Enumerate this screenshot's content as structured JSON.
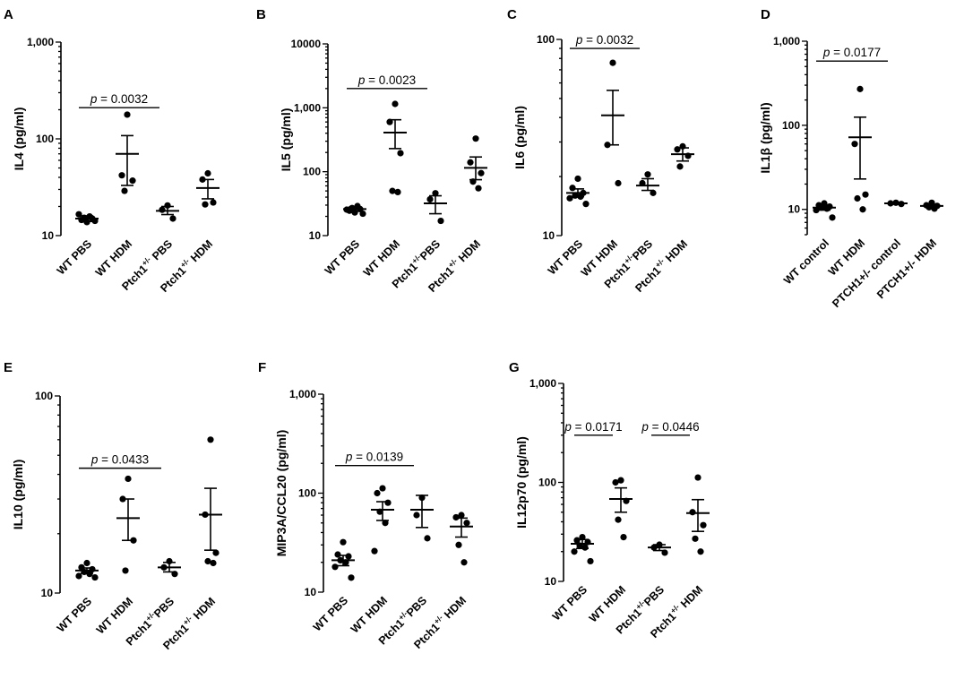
{
  "chart_data": [
    {
      "type": "scatter",
      "panel": "A",
      "scale": "log",
      "ylim": [
        10,
        1000
      ],
      "ylabel": "IL4 (pg/ml)",
      "yticks": [
        {
          "v": 10,
          "t": "10"
        },
        {
          "v": 100,
          "t": "100"
        },
        {
          "v": 1000,
          "t": "1,000"
        }
      ],
      "groups": [
        {
          "label": "WT PBS",
          "sup": "",
          "after": "",
          "mean": 15,
          "sem": [
            14,
            16
          ],
          "points": [
            13.8,
            14.5,
            15.0,
            15.3,
            15.8,
            16.6,
            14.2
          ]
        },
        {
          "label": "WT HDM",
          "sup": "",
          "after": "",
          "mean": 70,
          "sem": [
            33,
            108
          ],
          "points": [
            178,
            42,
            37,
            29
          ]
        },
        {
          "label": "Ptch1",
          "sup": "+/-",
          "after": " PBS",
          "mean": 18,
          "sem": [
            16.5,
            20
          ],
          "points": [
            20.5,
            18.5,
            15
          ]
        },
        {
          "label": "Ptch1",
          "sup": "+/-",
          "after": " HDM",
          "mean": 31,
          "sem": [
            24,
            38
          ],
          "points": [
            44,
            38,
            22,
            21
          ]
        }
      ],
      "pvalues": [
        {
          "from": 0,
          "to": 2,
          "y": 210,
          "text": "= 0.0032"
        }
      ]
    },
    {
      "type": "scatter",
      "panel": "B",
      "scale": "log",
      "ylim": [
        10,
        10000
      ],
      "ylabel": "IL5 (pg/ml)",
      "yticks": [
        {
          "v": 10,
          "t": "10"
        },
        {
          "v": 100,
          "t": "100"
        },
        {
          "v": 1000,
          "t": "1,000"
        },
        {
          "v": 10000,
          "t": "10000"
        }
      ],
      "groups": [
        {
          "label": "WT PBS",
          "sup": "",
          "after": "",
          "mean": 26,
          "sem": [
            24,
            28
          ],
          "points": [
            23,
            24.5,
            26,
            27,
            29,
            25.5,
            22
          ]
        },
        {
          "label": "WT HDM",
          "sup": "",
          "after": "",
          "mean": 410,
          "sem": [
            230,
            650
          ],
          "points": [
            1150,
            600,
            195,
            50,
            48
          ]
        },
        {
          "label": "Ptch1",
          "sup": "+/-",
          "after": "PBS",
          "mean": 32,
          "sem": [
            22,
            42
          ],
          "points": [
            46,
            37,
            17
          ]
        },
        {
          "label": "Ptch1",
          "sup": "+/-",
          "after": " HDM",
          "mean": 115,
          "sem": [
            75,
            170
          ],
          "points": [
            330,
            140,
            95,
            70,
            55
          ]
        }
      ],
      "pvalues": [
        {
          "from": 0,
          "to": 2,
          "y": 2000,
          "text": "= 0.0023"
        }
      ]
    },
    {
      "type": "scatter",
      "panel": "C",
      "scale": "log",
      "ylim": [
        10,
        100
      ],
      "ylabel": "IL6 (pg/ml)",
      "yticks": [
        {
          "v": 10,
          "t": "10"
        },
        {
          "v": 100,
          "t": "100"
        }
      ],
      "groups": [
        {
          "label": "WT PBS",
          "sup": "",
          "after": "",
          "mean": 16.5,
          "sem": [
            15.8,
            17.3
          ],
          "points": [
            19.5,
            17.5,
            16.5,
            16.0,
            15.8,
            15.5,
            14.5
          ]
        },
        {
          "label": "WT HDM",
          "sup": "",
          "after": "",
          "mean": 41,
          "sem": [
            29,
            55
          ],
          "points": [
            76,
            29,
            18.5
          ]
        },
        {
          "label": "Ptch1",
          "sup": "+/-",
          "after": "PBS",
          "mean": 18,
          "sem": [
            17,
            19.5
          ],
          "points": [
            20.5,
            18.5,
            16.5
          ]
        },
        {
          "label": "Ptch1",
          "sup": "+/-",
          "after": " HDM",
          "mean": 26,
          "sem": [
            24,
            28
          ],
          "points": [
            28.5,
            27.5,
            25.5,
            22.5
          ]
        }
      ],
      "pvalues": [
        {
          "from": 0,
          "to": 2,
          "y": 90,
          "text": "= 0.0032"
        }
      ]
    },
    {
      "type": "scatter",
      "panel": "D",
      "scale": "log",
      "ylim": [
        5,
        1000
      ],
      "ylabel": "IL1β (pg/ml)",
      "yticks": [
        {
          "v": 10,
          "t": "10"
        },
        {
          "v": 100,
          "t": "100"
        },
        {
          "v": 1000,
          "t": "1,000"
        }
      ],
      "groups": [
        {
          "label": "WT control",
          "sup": "",
          "after": "",
          "mean": 10.5,
          "sem": [
            9.8,
            11.2
          ],
          "points": [
            11.8,
            11.2,
            10.8,
            10.5,
            10.2,
            9.8,
            8.0
          ]
        },
        {
          "label": "WT HDM",
          "sup": "",
          "after": "",
          "mean": 72,
          "sem": [
            23,
            125
          ],
          "points": [
            270,
            60,
            15,
            13.5,
            10
          ]
        },
        {
          "label": "PTCH1+/- control",
          "sup": "",
          "after": "",
          "mean": 11.8,
          "sem": [
            11.5,
            12.1
          ],
          "points": [
            12,
            11.8,
            11.6
          ]
        },
        {
          "label": "PTCH1+/- HDM",
          "sup": "",
          "after": "",
          "mean": 11,
          "sem": [
            10.5,
            11.5
          ],
          "points": [
            12,
            11.2,
            11,
            10.6,
            10.2
          ]
        }
      ],
      "pvalues": [
        {
          "from": 0,
          "to": 2,
          "y": 580,
          "text": "= 0.0177"
        }
      ]
    },
    {
      "type": "scatter",
      "panel": "E",
      "scale": "log",
      "ylim": [
        10,
        100
      ],
      "ylabel": "IL10 (pg/ml)",
      "yticks": [
        {
          "v": 10,
          "t": "10"
        },
        {
          "v": 100,
          "t": "100"
        }
      ],
      "groups": [
        {
          "label": "WT PBS",
          "sup": "",
          "after": "",
          "mean": 13,
          "sem": [
            12.6,
            13.4
          ],
          "points": [
            14.2,
            13.5,
            13.2,
            12.8,
            12.5,
            12.2,
            12.0
          ]
        },
        {
          "label": "WT HDM",
          "sup": "",
          "after": "",
          "mean": 24,
          "sem": [
            18.5,
            30
          ],
          "points": [
            38,
            30,
            18.5,
            13
          ]
        },
        {
          "label": "Ptch1",
          "sup": "+/-",
          "after": "PBS",
          "mean": 13.5,
          "sem": [
            12.8,
            14.3
          ],
          "points": [
            14.5,
            13.5,
            12.5
          ]
        },
        {
          "label": "Ptch1",
          "sup": "+/-",
          "after": " HDM",
          "mean": 25,
          "sem": [
            16.5,
            34
          ],
          "points": [
            60,
            25,
            16,
            14.5,
            14.2
          ]
        }
      ],
      "pvalues": [
        {
          "from": 0,
          "to": 2,
          "y": 43,
          "text": "= 0.0433"
        }
      ]
    },
    {
      "type": "scatter",
      "panel": "F",
      "scale": "log",
      "ylim": [
        10,
        1000
      ],
      "ylabel": "MIP3A/CCL20 (pg/ml)",
      "yticks": [
        {
          "v": 10,
          "t": "10"
        },
        {
          "v": 100,
          "t": "100"
        },
        {
          "v": 1000,
          "t": "1,000"
        }
      ],
      "groups": [
        {
          "label": "WT PBS",
          "sup": "",
          "after": "",
          "mean": 21,
          "sem": [
            18.5,
            23.5
          ],
          "points": [
            32,
            24,
            23,
            21,
            20,
            18,
            14
          ]
        },
        {
          "label": "WT HDM",
          "sup": "",
          "after": "",
          "mean": 68,
          "sem": [
            53,
            82
          ],
          "points": [
            112,
            100,
            80,
            65,
            50,
            26
          ]
        },
        {
          "label": "Ptch1",
          "sup": "+/-",
          "after": "PBS",
          "mean": 68,
          "sem": [
            45,
            95
          ],
          "points": [
            90,
            60,
            35
          ]
        },
        {
          "label": "Ptch1",
          "sup": "+/-",
          "after": " HDM",
          "mean": 46,
          "sem": [
            36,
            56
          ],
          "points": [
            60,
            57,
            50,
            30,
            20
          ]
        }
      ],
      "pvalues": [
        {
          "from": 0,
          "to": 2,
          "y": 190,
          "text": "= 0.0139"
        }
      ]
    },
    {
      "type": "scatter",
      "panel": "G",
      "scale": "log",
      "ylim": [
        10,
        1000
      ],
      "ylabel": "IL12p70 (pg/ml)",
      "yticks": [
        {
          "v": 10,
          "t": "10"
        },
        {
          "v": 100,
          "t": "100"
        },
        {
          "v": 1000,
          "t": "1,000"
        }
      ],
      "groups": [
        {
          "label": "WT PBS",
          "sup": "",
          "after": "",
          "mean": 24,
          "sem": [
            21.5,
            26.5
          ],
          "points": [
            28,
            26,
            25,
            23,
            22,
            20,
            16
          ]
        },
        {
          "label": "WT HDM",
          "sup": "",
          "after": "",
          "mean": 68,
          "sem": [
            50,
            88
          ],
          "points": [
            105,
            100,
            65,
            42,
            28
          ]
        },
        {
          "label": "Ptch1",
          "sup": "+/-",
          "after": "PBS",
          "mean": 22,
          "sem": [
            20.5,
            23.5
          ],
          "points": [
            23.5,
            22,
            19.5
          ]
        },
        {
          "label": "Ptch1",
          "sup": "+/-",
          "after": " HDM",
          "mean": 49,
          "sem": [
            32,
            67
          ],
          "points": [
            112,
            50,
            37,
            27,
            20
          ]
        }
      ],
      "pvalues": [
        {
          "from": 0,
          "to": 1,
          "y": 300,
          "text": "= 0.0171"
        },
        {
          "from": 2,
          "to": 3,
          "y": 300,
          "text": "= 0.0446"
        }
      ]
    }
  ]
}
